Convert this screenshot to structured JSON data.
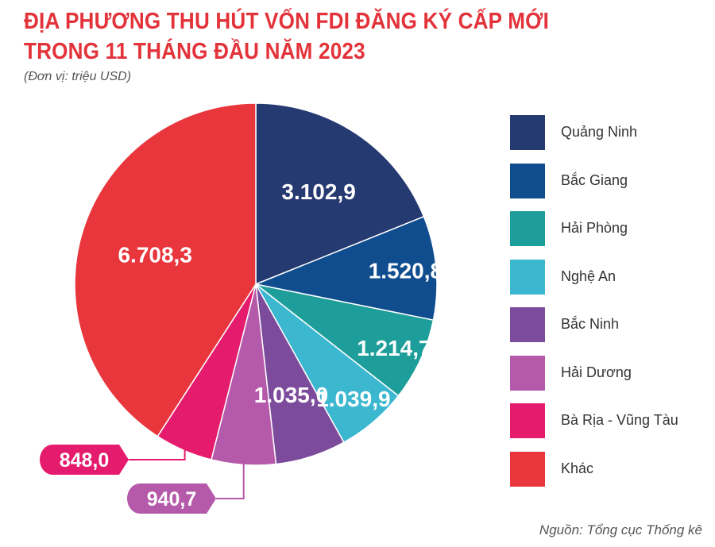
{
  "title_line1": "ĐỊA PHƯƠNG THU HÚT VỐN FDI ĐĂNG KÝ CẤP MỚI",
  "title_line2": "TRONG 11 THÁNG ĐẦU NĂM 2023",
  "unit_note": "(Đơn vị: triệu USD)",
  "source_note": "Nguồn: Tổng cục Thống kê",
  "chart_data": {
    "type": "pie",
    "title": "ĐỊA PHƯƠNG THU HÚT VỐN FDI ĐĂNG KÝ CẤP MỚI TRONG 11 THÁNG ĐẦU NĂM 2023",
    "unit": "(Đơn vị: triệu USD)",
    "legend_position": "right",
    "slices": [
      {
        "label": "Quảng Ninh",
        "value": 3102.9,
        "display": "3.102,9",
        "color": "#263a72"
      },
      {
        "label": "Bắc Giang",
        "value": 1520.8,
        "display": "1.520,8",
        "color": "#0f4d8e"
      },
      {
        "label": "Hải Phòng",
        "value": 1214.7,
        "display": "1.214,7",
        "color": "#1e9e9a"
      },
      {
        "label": "Nghệ An",
        "value": 1039.9,
        "display": "1.039,9",
        "color": "#3bb7cf"
      },
      {
        "label": "Bắc Ninh",
        "value": 1035.0,
        "display": "1.035,0",
        "color": "#7d4b9c"
      },
      {
        "label": "Hải Dương",
        "value": 940.7,
        "display": "940,7",
        "color": "#b55aaa"
      },
      {
        "label": "Bà Rịa - Vũng Tàu",
        "value": 848.0,
        "display": "848,0",
        "color": "#e51c6e"
      },
      {
        "label": "Khác",
        "value": 6708.3,
        "display": "6.708,3",
        "color": "#e8363c"
      }
    ]
  }
}
